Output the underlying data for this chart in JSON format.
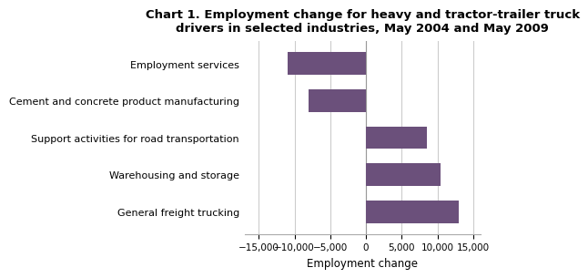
{
  "title": "Chart 1. Employment change for heavy and tractor-trailer truck\ndrivers in selected industries, May 2004 and May 2009",
  "categories": [
    "General freight trucking",
    "Warehousing and storage",
    "Support activities for road transportation",
    "Cement and concrete product manufacturing",
    "Employment services"
  ],
  "values": [
    13000,
    10500,
    8500,
    -8000,
    -11000
  ],
  "bar_color": "#6b507b",
  "xlabel": "Employment change",
  "xlim": [
    -17000,
    16000
  ],
  "xticks": [
    -15000,
    -10000,
    -5000,
    0,
    5000,
    10000,
    15000
  ],
  "background_color": "#ffffff",
  "grid_color": "#cccccc",
  "title_fontsize": 9.5,
  "xlabel_fontsize": 8.5,
  "ylabel_fontsize": 8,
  "tick_fontsize": 7.5,
  "bar_height": 0.6
}
